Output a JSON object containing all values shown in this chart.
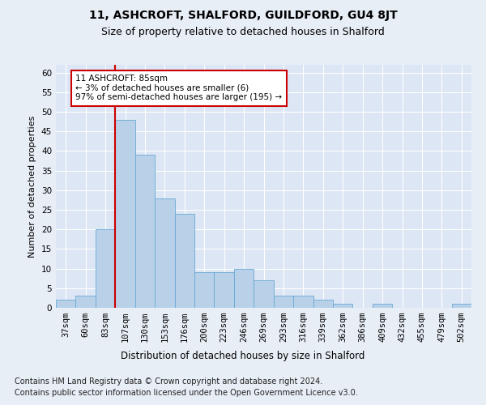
{
  "title1": "11, ASHCROFT, SHALFORD, GUILDFORD, GU4 8JT",
  "title2": "Size of property relative to detached houses in Shalford",
  "xlabel": "Distribution of detached houses by size in Shalford",
  "ylabel": "Number of detached properties",
  "categories": [
    "37sqm",
    "60sqm",
    "83sqm",
    "107sqm",
    "130sqm",
    "153sqm",
    "176sqm",
    "200sqm",
    "223sqm",
    "246sqm",
    "269sqm",
    "293sqm",
    "316sqm",
    "339sqm",
    "362sqm",
    "386sqm",
    "409sqm",
    "432sqm",
    "455sqm",
    "479sqm",
    "502sqm"
  ],
  "values": [
    2,
    3,
    20,
    48,
    39,
    28,
    24,
    9,
    9,
    10,
    7,
    3,
    3,
    2,
    1,
    0,
    1,
    0,
    0,
    0,
    1
  ],
  "bar_color": "#b8d0e8",
  "bar_edge_color": "#6aaad4",
  "red_line_index": 2,
  "annotation_text": "11 ASHCROFT: 85sqm\n← 3% of detached houses are smaller (6)\n97% of semi-detached houses are larger (195) →",
  "annotation_box_color": "#ffffff",
  "annotation_box_edge": "#cc0000",
  "ylim": [
    0,
    62
  ],
  "yticks": [
    0,
    5,
    10,
    15,
    20,
    25,
    30,
    35,
    40,
    45,
    50,
    55,
    60
  ],
  "bg_color": "#e8eef6",
  "plot_bg_color": "#dce6f4",
  "footer1": "Contains HM Land Registry data © Crown copyright and database right 2024.",
  "footer2": "Contains public sector information licensed under the Open Government Licence v3.0.",
  "title1_fontsize": 10,
  "title2_fontsize": 9,
  "xlabel_fontsize": 8.5,
  "ylabel_fontsize": 8,
  "tick_fontsize": 7.5,
  "annotation_fontsize": 7.5,
  "footer_fontsize": 7
}
